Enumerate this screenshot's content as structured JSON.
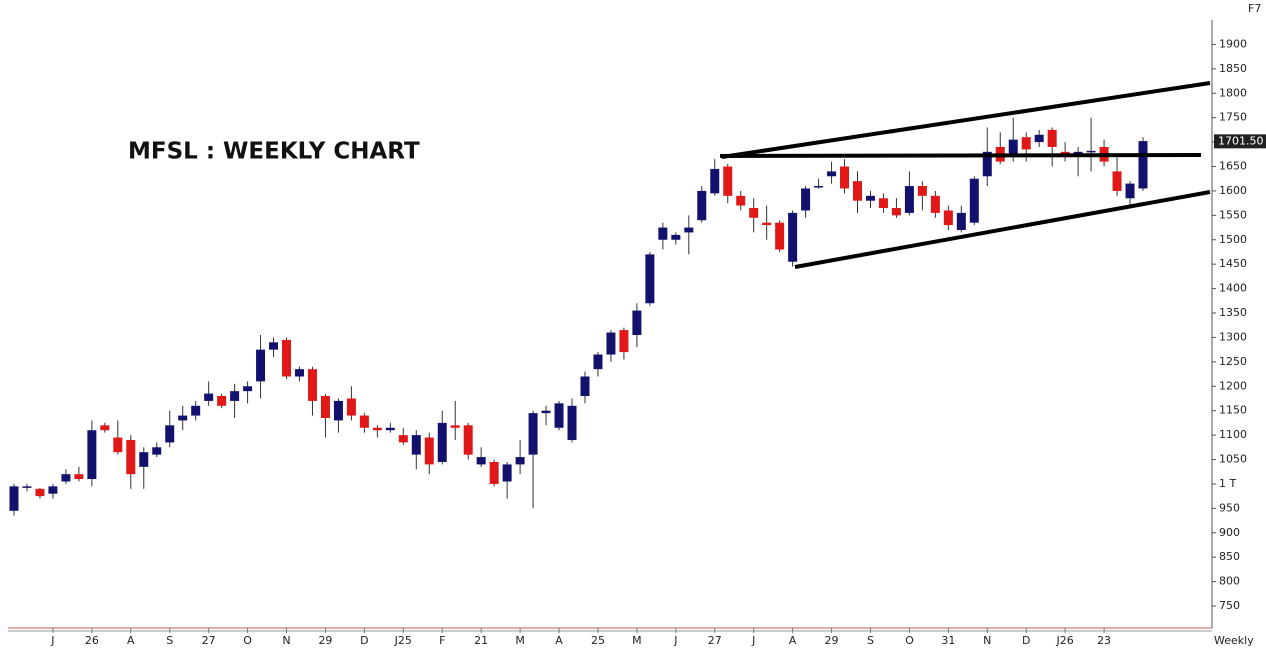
{
  "chart_data": {
    "type": "candlestick",
    "title": "MFSL : WEEKLY CHART",
    "corner_label": "F7",
    "interval_label": "Weekly",
    "up_color": "#12126e",
    "down_color": "#e01818",
    "categories": [
      null,
      null,
      null,
      "J",
      null,
      null,
      "26",
      null,
      null,
      "A",
      null,
      null,
      "S",
      null,
      null,
      "27",
      null,
      null,
      "O",
      null,
      null,
      "N",
      null,
      null,
      "29",
      null,
      null,
      "D",
      null,
      null,
      "J25",
      null,
      null,
      "F",
      null,
      null,
      "21",
      null,
      null,
      "M",
      null,
      null,
      "A",
      null,
      null,
      "25",
      null,
      null,
      "M",
      null,
      null,
      "J",
      null,
      null,
      "27",
      null,
      null,
      "J",
      null,
      null,
      "A",
      null,
      null,
      "29",
      null,
      null,
      "S",
      null,
      null,
      "O",
      null,
      null,
      "31",
      null,
      null,
      "N",
      null,
      null,
      "D",
      null,
      null,
      "J26",
      null,
      null,
      "23",
      null,
      null,
      null
    ],
    "open": [
      945,
      993,
      990,
      980,
      1005,
      1020,
      1010,
      1120,
      1095,
      1090,
      1035,
      1060,
      1085,
      1130,
      1140,
      1170,
      1180,
      1170,
      1190,
      1210,
      1275,
      1295,
      1220,
      1235,
      1180,
      1130,
      1175,
      1140,
      1115,
      1110,
      1100,
      1060,
      1095,
      1045,
      1120,
      1120,
      1040,
      1045,
      1005,
      1040,
      1060,
      1145,
      1115,
      1090,
      1180,
      1235,
      1265,
      1315,
      1305,
      1370,
      1500,
      1500,
      1515,
      1540,
      1595,
      1650,
      1590,
      1565,
      1535,
      1535,
      1455,
      1560,
      1608,
      1630,
      1650,
      1620,
      1580,
      1585,
      1565,
      1555,
      1610,
      1590,
      1560,
      1520,
      1535,
      1630,
      1690,
      1670,
      1710,
      1700,
      1725,
      1680,
      1675,
      1680,
      1690,
      1640,
      1585,
      1605
    ],
    "high": [
      1000,
      1000,
      992,
      1000,
      1030,
      1035,
      1130,
      1125,
      1130,
      1100,
      1075,
      1085,
      1150,
      1160,
      1170,
      1210,
      1185,
      1205,
      1210,
      1305,
      1300,
      1300,
      1240,
      1240,
      1185,
      1175,
      1200,
      1145,
      1120,
      1125,
      1115,
      1110,
      1105,
      1150,
      1170,
      1125,
      1075,
      1050,
      1045,
      1090,
      1150,
      1160,
      1170,
      1175,
      1230,
      1270,
      1315,
      1320,
      1370,
      1475,
      1535,
      1515,
      1550,
      1610,
      1665,
      1655,
      1600,
      1585,
      1570,
      1540,
      1560,
      1610,
      1625,
      1660,
      1665,
      1640,
      1600,
      1595,
      1585,
      1640,
      1620,
      1600,
      1570,
      1570,
      1630,
      1730,
      1720,
      1750,
      1720,
      1725,
      1730,
      1700,
      1690,
      1750,
      1705,
      1670,
      1620,
      1710
    ],
    "low": [
      935,
      985,
      970,
      970,
      1000,
      1005,
      995,
      1105,
      1060,
      990,
      990,
      1055,
      1075,
      1110,
      1130,
      1160,
      1155,
      1135,
      1165,
      1175,
      1260,
      1215,
      1210,
      1140,
      1095,
      1105,
      1130,
      1105,
      1095,
      1105,
      1080,
      1030,
      1020,
      1040,
      1090,
      1050,
      1035,
      995,
      970,
      1020,
      950,
      1120,
      1110,
      1085,
      1165,
      1220,
      1250,
      1255,
      1280,
      1365,
      1480,
      1490,
      1470,
      1535,
      1590,
      1575,
      1560,
      1515,
      1500,
      1475,
      1445,
      1545,
      1605,
      1615,
      1595,
      1555,
      1565,
      1555,
      1545,
      1550,
      1560,
      1545,
      1520,
      1515,
      1530,
      1610,
      1655,
      1660,
      1660,
      1690,
      1650,
      1660,
      1630,
      1640,
      1650,
      1590,
      1565,
      1600
    ],
    "close": [
      995,
      995,
      975,
      995,
      1020,
      1010,
      1110,
      1110,
      1065,
      1020,
      1065,
      1075,
      1120,
      1140,
      1160,
      1185,
      1160,
      1190,
      1200,
      1275,
      1290,
      1220,
      1235,
      1170,
      1135,
      1170,
      1140,
      1115,
      1110,
      1115,
      1085,
      1100,
      1040,
      1125,
      1115,
      1060,
      1055,
      1000,
      1040,
      1055,
      1145,
      1150,
      1165,
      1160,
      1220,
      1265,
      1310,
      1270,
      1355,
      1470,
      1525,
      1510,
      1525,
      1600,
      1645,
      1590,
      1570,
      1545,
      1530,
      1480,
      1555,
      1605,
      1610,
      1640,
      1605,
      1580,
      1590,
      1565,
      1550,
      1610,
      1590,
      1555,
      1530,
      1555,
      1625,
      1680,
      1660,
      1705,
      1685,
      1715,
      1690,
      1670,
      1680,
      1682,
      1660,
      1600,
      1615,
      1702
    ],
    "last_price": {
      "value": 1701.5,
      "label": "1701.50"
    },
    "ylim": [
      705,
      1950
    ],
    "yticks": [
      750,
      800,
      850,
      900,
      950,
      {
        "value": 1000,
        "label": "1 T"
      },
      1050,
      1100,
      1150,
      1200,
      1250,
      1300,
      1350,
      1400,
      1450,
      1500,
      1550,
      1600,
      1650,
      1700,
      1750,
      1800,
      1850,
      1900
    ]
  }
}
